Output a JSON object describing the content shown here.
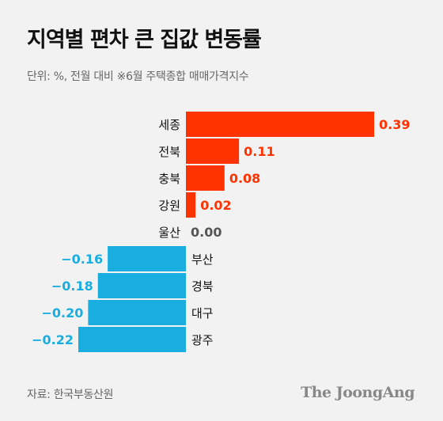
{
  "header": {
    "title": "지역별 편차 큰 집값 변동률",
    "subtitle": "단위: %, 전월 대비  ※6월 주택종합 매매가격지수"
  },
  "footer": {
    "source": "자료: 한국부동산원",
    "logo": "The JoongAng"
  },
  "colors": {
    "positive": "#ff3300",
    "negative": "#1aaee0",
    "zero_label": "#555555",
    "category_label": "#111111"
  },
  "chart_data": {
    "type": "bar",
    "orientation": "horizontal",
    "title": "지역별 편차 큰 집값 변동률",
    "categories": [
      "세종",
      "전북",
      "충북",
      "강원",
      "울산",
      "부산",
      "경북",
      "대구",
      "광주"
    ],
    "values": [
      0.39,
      0.11,
      0.08,
      0.02,
      0.0,
      -0.16,
      -0.18,
      -0.2,
      -0.22
    ],
    "value_labels": [
      "0.39",
      "0.11",
      "0.08",
      "0.02",
      "0.00",
      "−0.16",
      "−0.18",
      "−0.20",
      "−0.22"
    ],
    "xlim": [
      -0.22,
      0.39
    ],
    "grid": false,
    "legend": "none"
  }
}
